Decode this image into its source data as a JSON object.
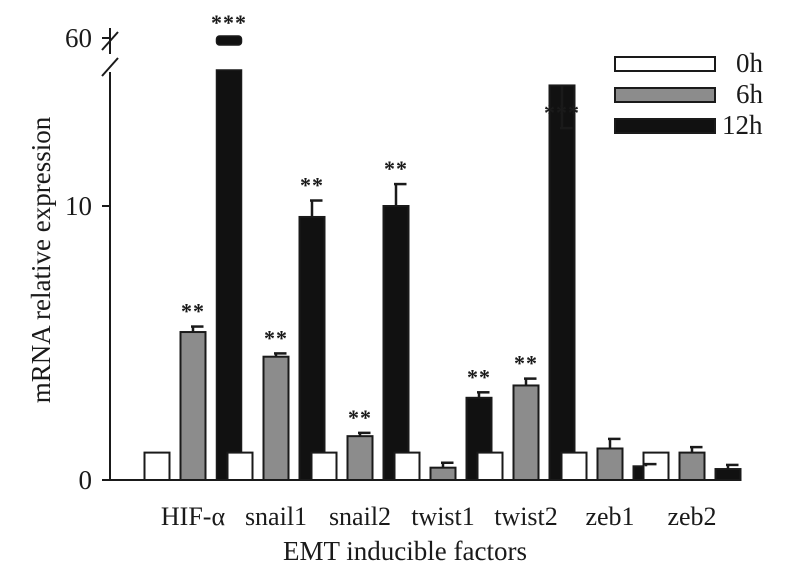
{
  "chart_data": {
    "type": "bar",
    "title": "",
    "xlabel": "EMT inducible factors",
    "ylabel": "mRNA relative expression",
    "ylim": [
      0,
      15
    ],
    "axis_break": {
      "between": [
        14.5,
        60
      ],
      "top_tick": 60
    },
    "yticks": [
      {
        "value": 0,
        "label": "0"
      },
      {
        "value": 10,
        "label": "10"
      },
      {
        "value": 60,
        "label": "60"
      }
    ],
    "categories": [
      "HIF-α",
      "snail1",
      "snail2",
      "twist1",
      "twist2",
      "zeb1",
      "zeb2"
    ],
    "series": [
      {
        "name": "0h",
        "color": "#ffffff",
        "values": [
          1,
          1,
          1,
          1,
          1,
          1,
          1
        ],
        "errors": [
          0,
          0,
          0,
          0,
          0,
          0,
          0
        ],
        "significance": [
          "",
          "",
          "",
          "",
          "",
          "",
          ""
        ]
      },
      {
        "name": "6h",
        "color": "#8c8c8c",
        "values": [
          5.4,
          4.5,
          1.6,
          0.45,
          3.45,
          1.15,
          1.0
        ],
        "errors": [
          0.2,
          0.12,
          0.12,
          0.18,
          0.25,
          0.35,
          0.2
        ],
        "significance": [
          "**",
          "**",
          "**",
          "",
          "**",
          "",
          ""
        ]
      },
      {
        "name": "12h",
        "color": "#111111",
        "values": [
          60,
          9.6,
          10.0,
          3.0,
          14.4,
          0.5,
          0.4
        ],
        "errors": [
          0,
          0.6,
          0.8,
          0.2,
          0.55,
          0.08,
          0.15
        ],
        "significance": [
          "***",
          "**",
          "**",
          "**",
          "***",
          "",
          ""
        ]
      }
    ],
    "legend": {
      "position": "top-right",
      "entries": [
        "0h",
        "6h",
        "12h"
      ]
    }
  }
}
